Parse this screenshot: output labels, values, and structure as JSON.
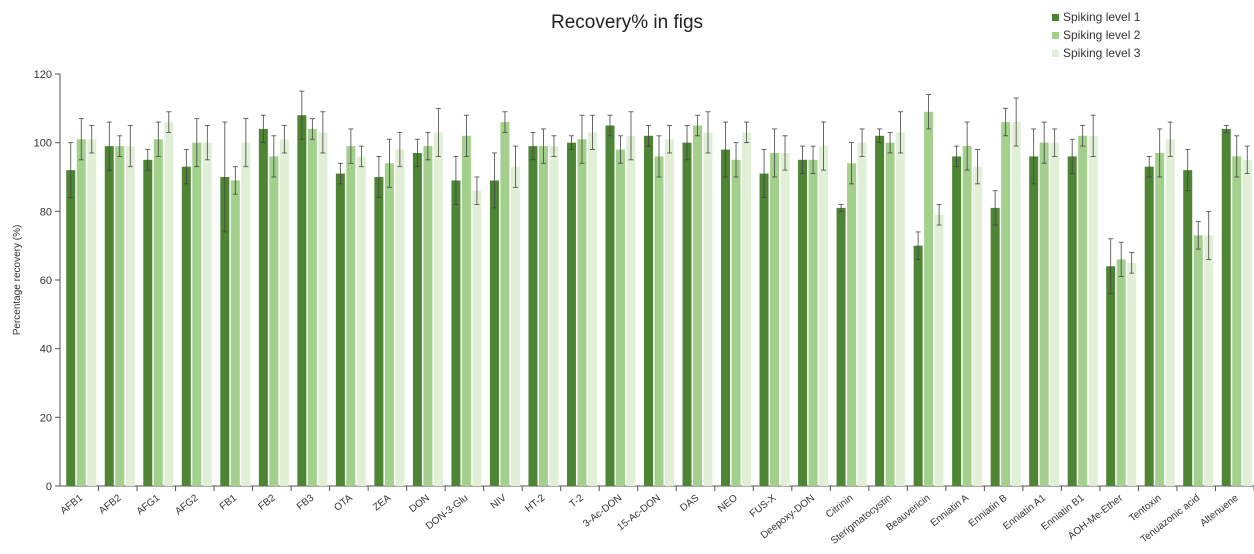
{
  "chart_data": {
    "type": "bar",
    "title": "Recovery% in figs",
    "xlabel": "",
    "ylabel": "Percentage recovery (%)",
    "ylim": [
      0,
      120
    ],
    "yticks": [
      0,
      20,
      40,
      60,
      80,
      100,
      120
    ],
    "grid": false,
    "legend_position": "top-right",
    "categories": [
      "AFB1",
      "AFB2",
      "AFG1",
      "AFG2",
      "FB1",
      "FB2",
      "FB3",
      "OTA",
      "ZEA",
      "DON",
      "DON-3-Glu",
      "NIV",
      "HT-2",
      "T-2",
      "3-Ac-DON",
      "15-Ac-DON",
      "DAS",
      "NEO",
      "FUS-X",
      "Deepoxy-DON",
      "Citrinin",
      "Sterigmatocystin",
      "Beauvericin",
      "Enniatin A",
      "Enniatin B",
      "Enniatin A1",
      "Enniatin B1",
      "AOH-Me-Ether",
      "Tentoxin",
      "Tenuazonic acid",
      "Altenuene"
    ],
    "series": [
      {
        "name": "Spiking level 1",
        "color": "#4e8535",
        "values": [
          92,
          99,
          95,
          93,
          90,
          104,
          108,
          91,
          90,
          97,
          89,
          89,
          99,
          100,
          105,
          102,
          100,
          98,
          91,
          95,
          81,
          102,
          70,
          96,
          81,
          96,
          96,
          64,
          93,
          92,
          104
        ],
        "errors": [
          8,
          7,
          3,
          5,
          16,
          4,
          7,
          3,
          6,
          4,
          7,
          8,
          4,
          2,
          3,
          3,
          5,
          8,
          7,
          4,
          1,
          2,
          4,
          3,
          5,
          8,
          5,
          8,
          3,
          6,
          1
        ]
      },
      {
        "name": "Spiking level 2",
        "color": "#a3d08c",
        "values": [
          101,
          99,
          101,
          100,
          89,
          96,
          104,
          99,
          94,
          99,
          102,
          106,
          99,
          101,
          98,
          96,
          105,
          95,
          97,
          95,
          94,
          100,
          109,
          99,
          106,
          100,
          102,
          66,
          97,
          73,
          96
        ]
      },
      {
        "name": "Spiking level 3",
        "color": "#e2efd7",
        "values": [
          101,
          99,
          106,
          100,
          100,
          101,
          103,
          96,
          98,
          103,
          86,
          93,
          99,
          103,
          102,
          101,
          103,
          103,
          97,
          99,
          100,
          103,
          79,
          93,
          106,
          100,
          102,
          65,
          101,
          73,
          95
        ]
      }
    ]
  }
}
